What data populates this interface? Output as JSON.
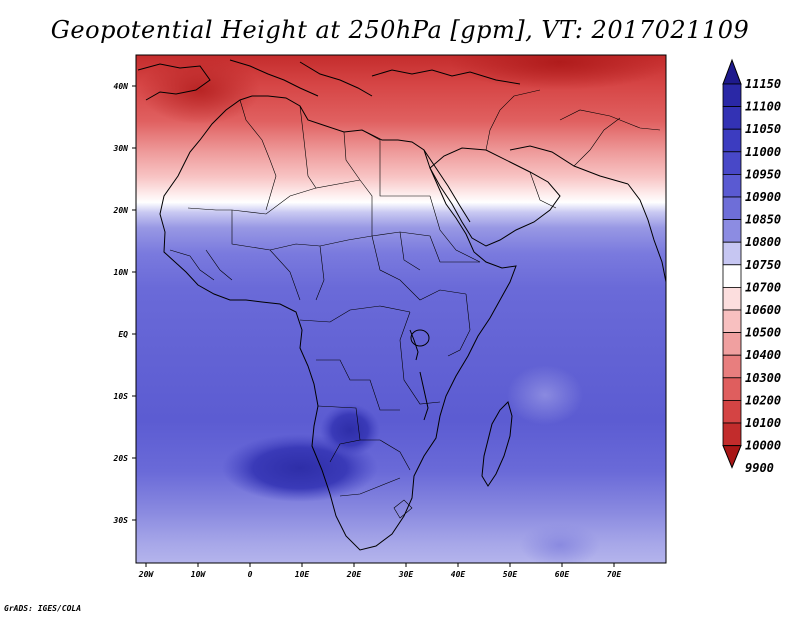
{
  "title": "Geopotential Height at 250hPa [gpm], VT: 2017021109",
  "footer": "GrADS: IGES/COLA",
  "map": {
    "lon_labels": [
      "20W",
      "10W",
      "0",
      "10E",
      "20E",
      "30E",
      "40E",
      "50E",
      "60E",
      "70E"
    ],
    "lat_labels": [
      "40N",
      "30N",
      "20N",
      "10N",
      "EQ",
      "10S",
      "20S",
      "30S"
    ]
  },
  "colorbar": {
    "levels": [
      "11150",
      "11100",
      "11050",
      "11000",
      "10950",
      "10900",
      "10850",
      "10800",
      "10750",
      "10700",
      "10600",
      "10500",
      "10400",
      "10300",
      "10200",
      "10100",
      "10000",
      "9900"
    ],
    "colors": [
      "#1e1a8c",
      "#2a28a6",
      "#3332b4",
      "#3c3cc0",
      "#4848c8",
      "#5a5ad2",
      "#6e6ed8",
      "#8c8ce2",
      "#c6c6f2",
      "#ffffff",
      "#fcdede",
      "#f8c0c0",
      "#f0a0a0",
      "#e87e7e",
      "#df5e5e",
      "#d44444",
      "#c22c2c",
      "#a81616"
    ]
  },
  "palette": {
    "ocean": "#6464d6",
    "land_coast": "#000000"
  }
}
